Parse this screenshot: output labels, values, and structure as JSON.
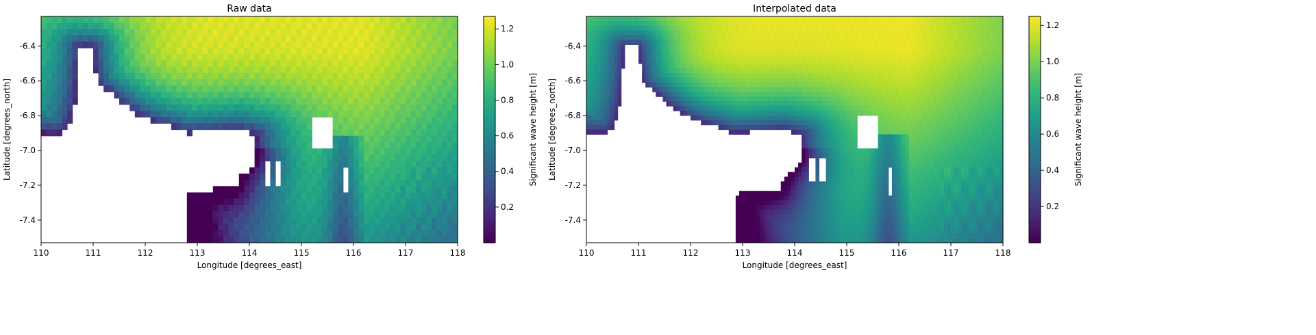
{
  "chart_data": [
    {
      "type": "heatmap",
      "title": "Raw data",
      "xlabel": "Longitude [degrees_east]",
      "ylabel": "Latitude [degrees_north]",
      "xlim": [
        110,
        118
      ],
      "ylim": [
        -7.53,
        -6.23
      ],
      "xticks": [
        "110",
        "111",
        "112",
        "113",
        "114",
        "115",
        "116",
        "117",
        "118"
      ],
      "yticks": [
        "-6.4",
        "-6.6",
        "-6.8",
        "-7.0",
        "-7.2",
        "-7.4"
      ],
      "colorbar": {
        "label": "Significant wave height [m]",
        "range": [
          0.0,
          1.27
        ],
        "ticks": [
          "0.2",
          "0.4",
          "0.6",
          "0.8",
          "1.0",
          "1.2"
        ]
      },
      "colormap": "viridis",
      "grid": false,
      "style": "raw"
    },
    {
      "type": "heatmap",
      "title": "Interpolated data",
      "xlabel": "Longitude [degrees_east]",
      "ylabel": "Latitude [degrees_north]",
      "xlim": [
        110,
        118
      ],
      "ylim": [
        -7.53,
        -6.23
      ],
      "xticks": [
        "110",
        "111",
        "112",
        "113",
        "114",
        "115",
        "116",
        "117",
        "118"
      ],
      "yticks": [
        "-6.4",
        "-6.6",
        "-6.8",
        "-7.0",
        "-7.2",
        "-7.4"
      ],
      "colorbar": {
        "label": "Significant wave height [m]",
        "range": [
          0.0,
          1.25
        ],
        "ticks": [
          "0.2",
          "0.4",
          "0.6",
          "0.8",
          "1.0",
          "1.2"
        ]
      },
      "colormap": "viridis",
      "grid": false,
      "style": "smooth"
    }
  ]
}
